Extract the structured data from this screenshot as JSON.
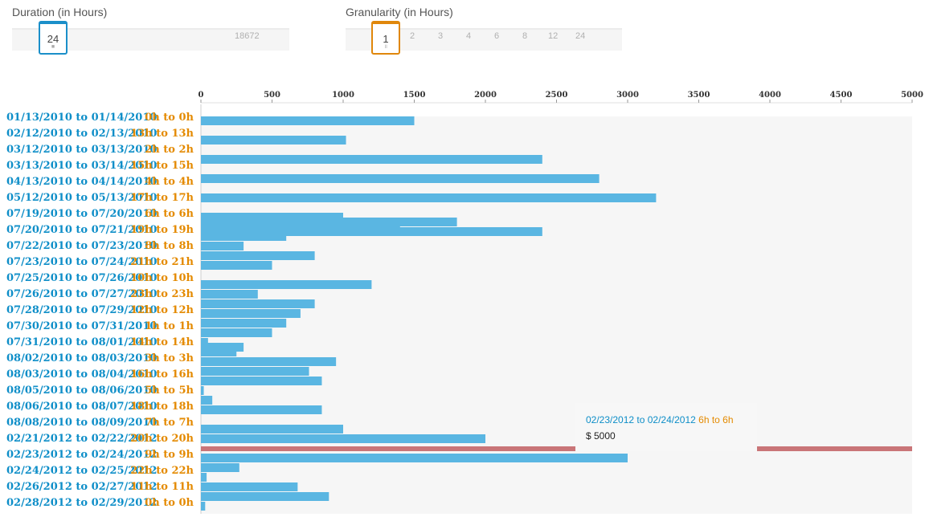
{
  "controls": {
    "duration": {
      "label": "Duration (in Hours)",
      "value": "24",
      "max_label": "18672",
      "color": "#1b8fc9"
    },
    "granularity": {
      "label": "Granularity (in Hours)",
      "value": "1",
      "options": [
        "2",
        "3",
        "4",
        "6",
        "8",
        "12",
        "24"
      ],
      "color": "#e0870b"
    }
  },
  "colors": {
    "date_text": "#0e8ec8",
    "hour_text": "#e48a00",
    "bar": "#5ab6e2",
    "highlight": "#c97578",
    "panel": "#f6f6f6"
  },
  "tooltip": {
    "date": "02/23/2012 to 02/24/2012",
    "hours": "6h to 6h",
    "value": "$ 5000"
  },
  "chart_data": {
    "type": "bar",
    "orientation": "horizontal",
    "xlim": [
      0,
      5000
    ],
    "ticks": [
      "0",
      "500",
      "1000",
      "1500",
      "2000",
      "2500",
      "3000",
      "3500",
      "4000",
      "4500",
      "5000"
    ],
    "tick_values": [
      0,
      500,
      1000,
      1500,
      2000,
      2500,
      3000,
      3500,
      4000,
      4500,
      5000
    ],
    "row_labels": [
      {
        "date": "01/13/2010 to 01/14/2010",
        "hours": "0h to 0h"
      },
      {
        "date": "02/12/2010 to 02/13/2010",
        "hours": "13h to 13h"
      },
      {
        "date": "03/12/2010 to 03/13/2010",
        "hours": "2h to 2h"
      },
      {
        "date": "03/13/2010 to 03/14/2010",
        "hours": "15h to 15h"
      },
      {
        "date": "04/13/2010 to 04/14/2010",
        "hours": "4h to 4h"
      },
      {
        "date": "05/12/2010 to 05/13/2010",
        "hours": "17h to 17h"
      },
      {
        "date": "07/19/2010 to 07/20/2010",
        "hours": "6h to 6h"
      },
      {
        "date": "07/20/2010 to 07/21/2010",
        "hours": "19h to 19h"
      },
      {
        "date": "07/22/2010 to 07/23/2010",
        "hours": "8h to 8h"
      },
      {
        "date": "07/23/2010 to 07/24/2010",
        "hours": "21h to 21h"
      },
      {
        "date": "07/25/2010 to 07/26/2010",
        "hours": "10h to 10h"
      },
      {
        "date": "07/26/2010 to 07/27/2010",
        "hours": "23h to 23h"
      },
      {
        "date": "07/28/2010 to 07/29/2010",
        "hours": "12h to 12h"
      },
      {
        "date": "07/30/2010 to 07/31/2010",
        "hours": "1h to 1h"
      },
      {
        "date": "07/31/2010 to 08/01/2010",
        "hours": "14h to 14h"
      },
      {
        "date": "08/02/2010 to 08/03/2010",
        "hours": "3h to 3h"
      },
      {
        "date": "08/03/2010 to 08/04/2010",
        "hours": "16h to 16h"
      },
      {
        "date": "08/05/2010 to 08/06/2010",
        "hours": "5h to 5h"
      },
      {
        "date": "08/06/2010 to 08/07/2010",
        "hours": "18h to 18h"
      },
      {
        "date": "08/08/2010 to 08/09/2010",
        "hours": "7h to 7h"
      },
      {
        "date": "02/21/2012 to 02/22/2012",
        "hours": "20h to 20h"
      },
      {
        "date": "02/23/2012 to 02/24/2012",
        "hours": "9h to 9h"
      },
      {
        "date": "02/24/2012 to 02/25/2012",
        "hours": "22h to 22h"
      },
      {
        "date": "02/26/2012 to 02/27/2012",
        "hours": "11h to 11h"
      },
      {
        "date": "02/28/2012 to 02/29/2012",
        "hours": "0h to 0h"
      }
    ],
    "bars": [
      {
        "slot": 0,
        "value": 1500
      },
      {
        "slot": 2,
        "value": 1020
      },
      {
        "slot": 4,
        "value": 2400
      },
      {
        "slot": 6,
        "value": 2800
      },
      {
        "slot": 8,
        "value": 3200
      },
      {
        "slot": 10,
        "value": 1000
      },
      {
        "slot": 10.5,
        "value": 1800
      },
      {
        "slot": 11,
        "value": 1400
      },
      {
        "slot": 11.5,
        "value": 2400
      },
      {
        "slot": 12,
        "value": 600
      },
      {
        "slot": 13,
        "value": 300
      },
      {
        "slot": 14,
        "value": 800
      },
      {
        "slot": 15,
        "value": 500
      },
      {
        "slot": 17,
        "value": 1200
      },
      {
        "slot": 18,
        "value": 400
      },
      {
        "slot": 19,
        "value": 800
      },
      {
        "slot": 20,
        "value": 700
      },
      {
        "slot": 21,
        "value": 600
      },
      {
        "slot": 22,
        "value": 500
      },
      {
        "slot": 23,
        "value": 50
      },
      {
        "slot": 23.5,
        "value": 300
      },
      {
        "slot": 24,
        "value": 250
      },
      {
        "slot": 25,
        "value": 950
      },
      {
        "slot": 26,
        "value": 760
      },
      {
        "slot": 27,
        "value": 850
      },
      {
        "slot": 28,
        "value": 20
      },
      {
        "slot": 29,
        "value": 80
      },
      {
        "slot": 30,
        "value": 850
      },
      {
        "slot": 32,
        "value": 1000
      },
      {
        "slot": 33,
        "value": 2000
      },
      {
        "slot": 34,
        "value": 5000,
        "highlight": true
      },
      {
        "slot": 35,
        "value": 3000
      },
      {
        "slot": 36,
        "value": 270
      },
      {
        "slot": 37,
        "value": 40
      },
      {
        "slot": 38,
        "value": 680
      },
      {
        "slot": 39,
        "value": 900
      },
      {
        "slot": 40,
        "value": 30
      }
    ]
  }
}
